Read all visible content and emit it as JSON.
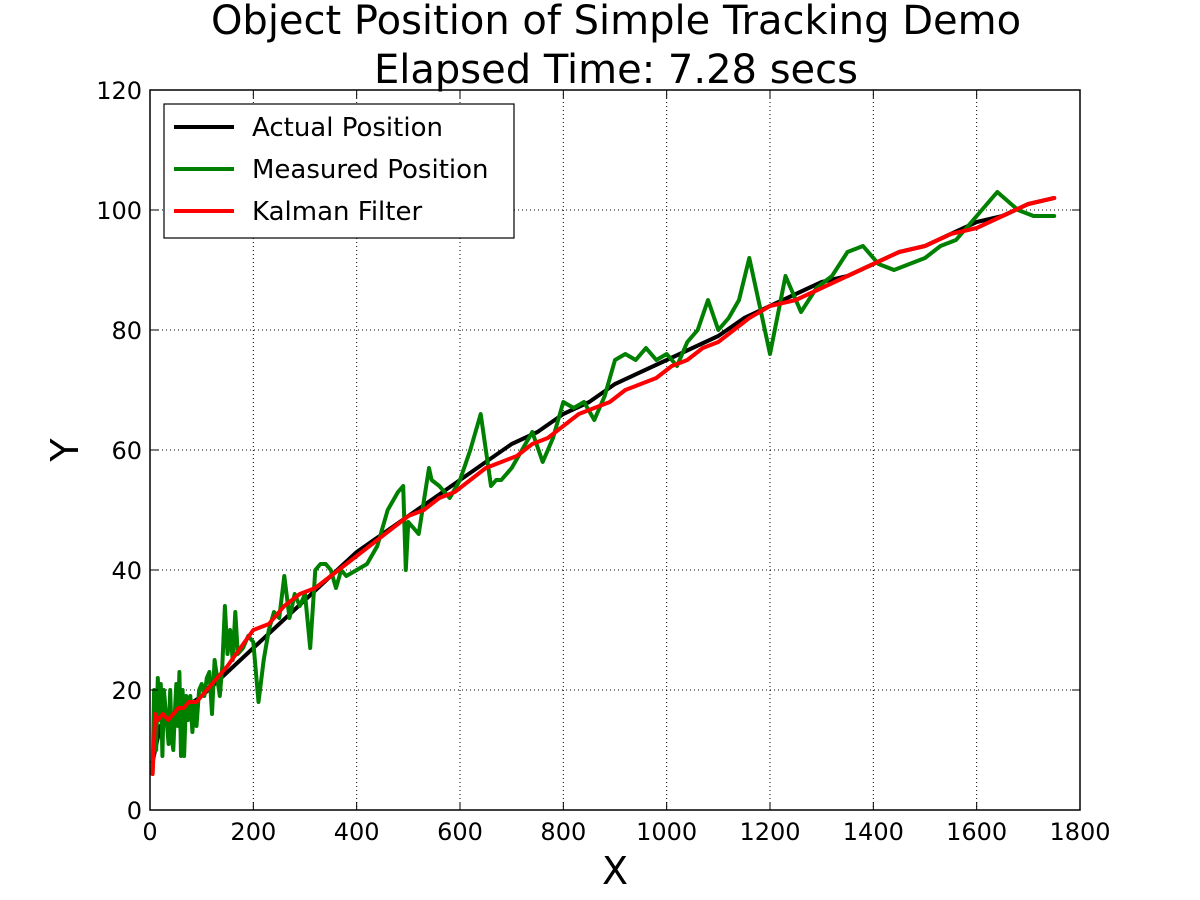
{
  "chart_data": {
    "type": "line",
    "title": [
      "Object Position of Simple Tracking Demo",
      "Elapsed Time: 7.28 secs"
    ],
    "xlabel": "X",
    "ylabel": "Y",
    "xlim": [
      0,
      1800
    ],
    "ylim": [
      0,
      120
    ],
    "xticks": [
      0,
      200,
      400,
      600,
      800,
      1000,
      1200,
      1400,
      1600,
      1800
    ],
    "yticks": [
      0,
      20,
      40,
      60,
      80,
      100,
      120
    ],
    "grid": true,
    "legend_position": "top-left",
    "series": [
      {
        "name": "Actual Position",
        "color": "#000000",
        "x": [
          5,
          20,
          50,
          100,
          150,
          200,
          250,
          300,
          350,
          400,
          450,
          500,
          550,
          600,
          650,
          700,
          750,
          800,
          850,
          900,
          950,
          1000,
          1050,
          1100,
          1150,
          1200,
          1250,
          1300,
          1350,
          1400,
          1450,
          1500,
          1550,
          1600,
          1650,
          1700,
          1750
        ],
        "y": [
          8,
          14,
          16,
          19,
          23,
          27,
          31,
          35,
          39,
          43,
          46,
          49,
          52,
          55,
          58,
          61,
          63,
          66,
          68,
          71,
          73,
          75,
          77,
          79,
          82,
          84,
          86,
          88,
          89,
          91,
          93,
          94,
          96,
          98,
          99,
          101,
          102
        ]
      },
      {
        "name": "Measured Position",
        "color": "#008000",
        "x": [
          5,
          8,
          12,
          15,
          18,
          21,
          24,
          27,
          30,
          33,
          36,
          39,
          42,
          45,
          48,
          51,
          54,
          57,
          60,
          63,
          66,
          70,
          74,
          78,
          82,
          86,
          90,
          95,
          100,
          105,
          110,
          115,
          120,
          125,
          130,
          135,
          140,
          145,
          150,
          155,
          160,
          165,
          170,
          180,
          190,
          200,
          210,
          220,
          230,
          240,
          250,
          260,
          270,
          280,
          290,
          300,
          310,
          320,
          330,
          340,
          350,
          360,
          370,
          380,
          400,
          420,
          440,
          460,
          480,
          490,
          495,
          500,
          520,
          540,
          545,
          560,
          580,
          600,
          620,
          640,
          660,
          670,
          680,
          700,
          720,
          740,
          760,
          780,
          800,
          820,
          840,
          860,
          880,
          900,
          920,
          940,
          960,
          980,
          1000,
          1020,
          1040,
          1060,
          1080,
          1100,
          1120,
          1140,
          1160,
          1180,
          1200,
          1230,
          1260,
          1290,
          1320,
          1350,
          1380,
          1410,
          1440,
          1470,
          1500,
          1530,
          1560,
          1600,
          1640,
          1680,
          1710,
          1750
        ],
        "y": [
          6,
          20,
          10,
          22,
          15,
          21,
          9,
          20,
          17,
          14,
          11,
          20,
          12,
          10,
          16,
          21,
          14,
          23,
          9,
          20,
          9,
          19,
          15,
          19,
          13,
          18,
          14,
          20,
          21,
          19,
          22,
          23,
          16,
          25,
          22,
          19,
          24,
          34,
          26,
          30,
          25,
          33,
          26,
          27,
          29,
          28,
          18,
          25,
          30,
          33,
          32,
          39,
          32,
          36,
          34,
          36,
          27,
          40,
          41,
          41,
          40,
          37,
          40,
          39,
          40,
          41,
          44,
          50,
          53,
          54,
          40,
          48,
          46,
          57,
          55,
          54,
          52,
          55,
          60,
          66,
          54,
          55,
          55,
          57,
          60,
          63,
          58,
          62,
          68,
          67,
          68,
          65,
          69,
          75,
          76,
          75,
          77,
          75,
          76,
          74,
          78,
          80,
          85,
          80,
          82,
          85,
          92,
          84,
          76,
          89,
          83,
          87,
          89,
          93,
          94,
          91,
          90,
          91,
          92,
          94,
          95,
          99,
          103,
          100,
          99,
          99
        ]
      },
      {
        "name": "Kalman Filter",
        "color": "#ff0000",
        "x": [
          5,
          10,
          15,
          25,
          35,
          45,
          55,
          65,
          75,
          90,
          110,
          130,
          150,
          175,
          200,
          230,
          260,
          290,
          320,
          350,
          380,
          410,
          440,
          470,
          500,
          530,
          560,
          590,
          620,
          650,
          680,
          710,
          740,
          770,
          800,
          830,
          860,
          890,
          920,
          950,
          980,
          1010,
          1040,
          1070,
          1100,
          1130,
          1160,
          1200,
          1250,
          1300,
          1350,
          1400,
          1450,
          1500,
          1550,
          1600,
          1650,
          1700,
          1750
        ],
        "y": [
          6,
          16,
          15,
          16,
          15,
          16,
          17,
          17,
          18,
          18,
          20,
          22,
          24,
          27,
          30,
          31,
          34,
          36,
          37,
          39,
          41,
          43,
          45,
          47,
          49,
          50,
          52,
          53,
          55,
          57,
          58,
          59,
          61,
          62,
          64,
          66,
          67,
          68,
          70,
          71,
          72,
          74,
          75,
          77,
          78,
          80,
          82,
          84,
          85,
          87,
          89,
          91,
          93,
          94,
          96,
          97,
          99,
          101,
          102
        ]
      }
    ]
  }
}
